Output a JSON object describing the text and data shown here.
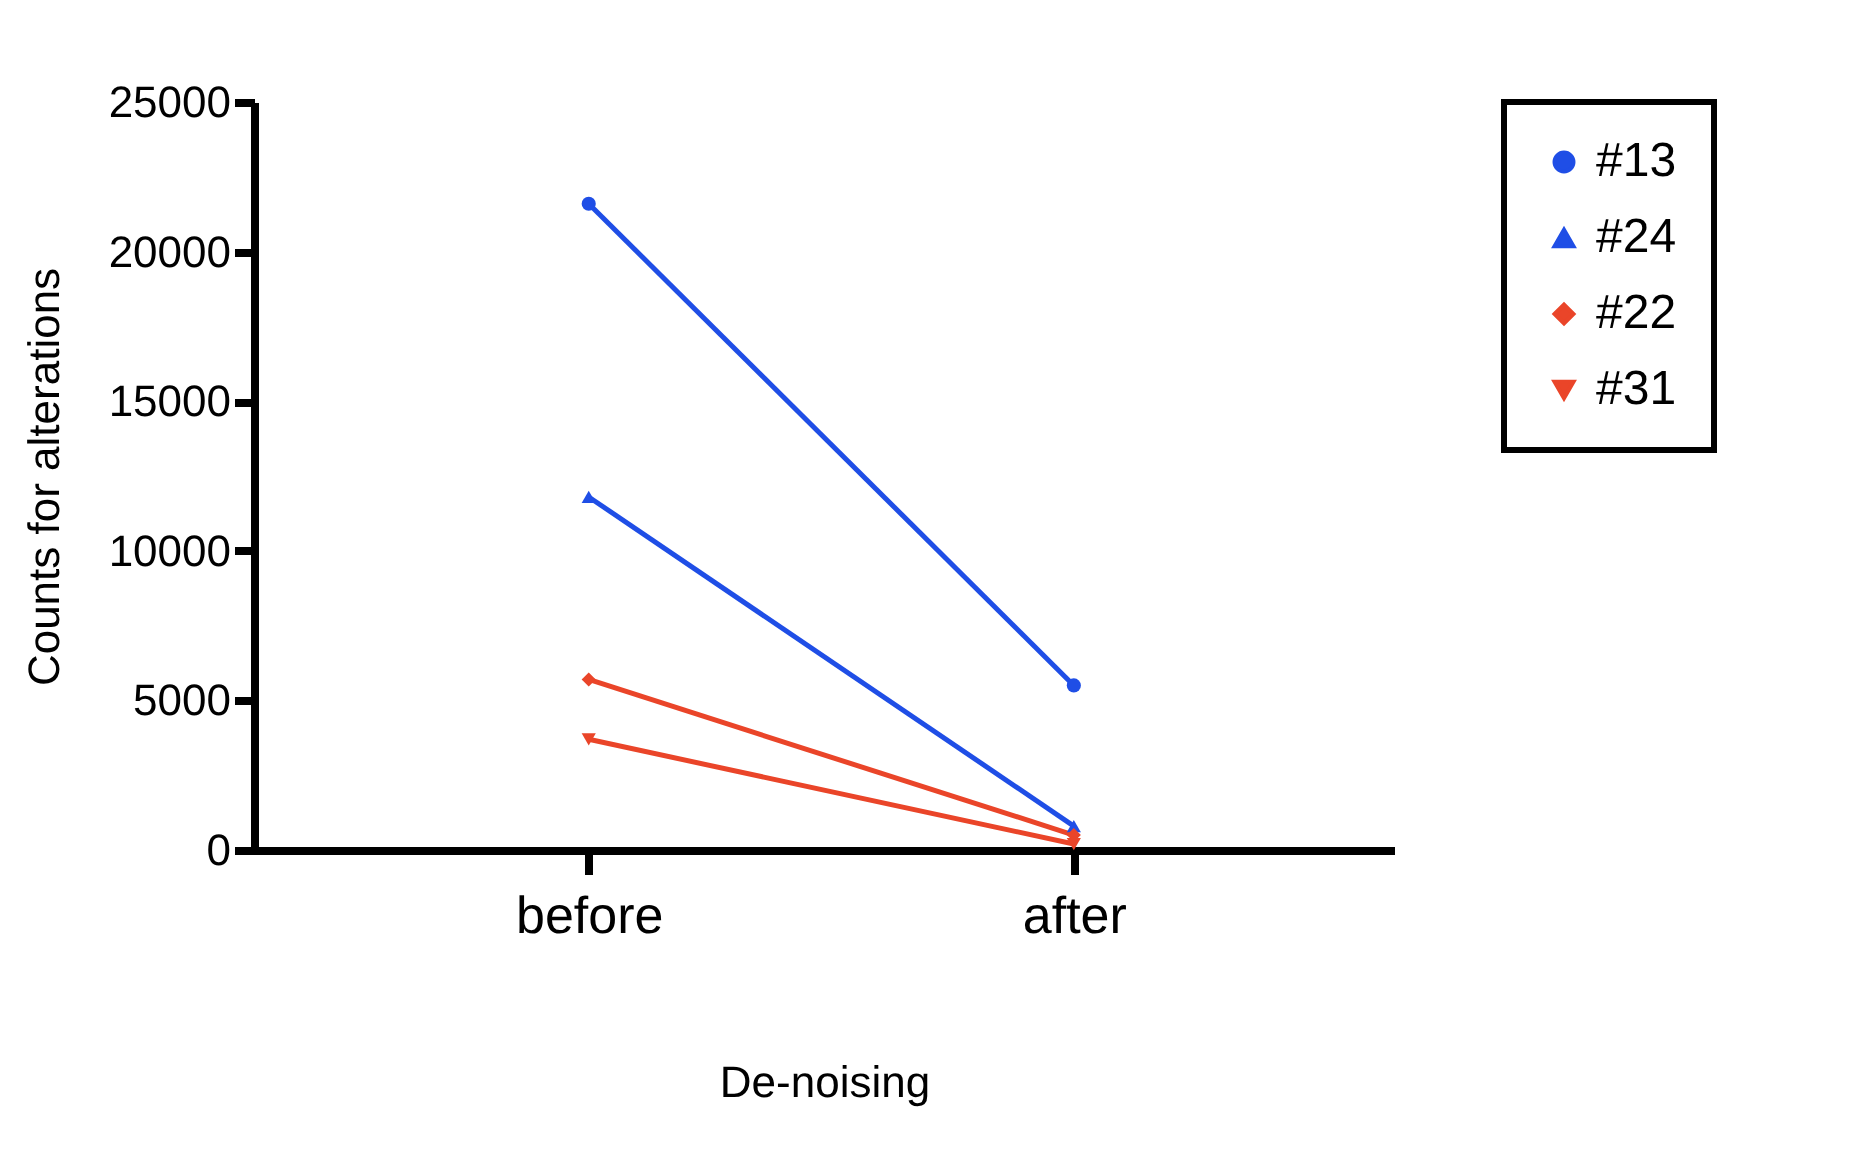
{
  "chart_data": {
    "type": "line",
    "xlabel": "De-noising",
    "ylabel": "Counts for alterations",
    "categories": [
      "before",
      "after"
    ],
    "series": [
      {
        "name": "#13",
        "color": "#1f4ee6",
        "marker": "circle",
        "values": [
          21600,
          5500
        ]
      },
      {
        "name": "#24",
        "color": "#1f4ee6",
        "marker": "triangle",
        "values": [
          11800,
          800
        ]
      },
      {
        "name": "#22",
        "color": "#ea4529",
        "marker": "diamond",
        "values": [
          5700,
          500
        ]
      },
      {
        "name": "#31",
        "color": "#ea4529",
        "marker": "triangle-down",
        "values": [
          3700,
          200
        ]
      }
    ],
    "ylim": [
      0,
      25000
    ],
    "yticks": [
      0,
      5000,
      10000,
      15000,
      20000,
      25000
    ],
    "grid": false,
    "legend": "top right",
    "line_style": "solid"
  }
}
